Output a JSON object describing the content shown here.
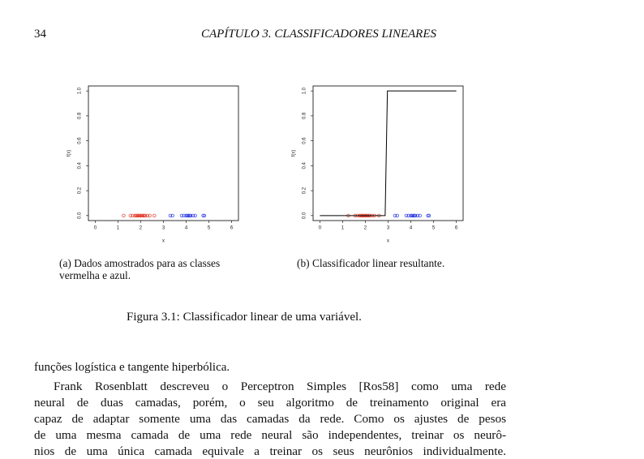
{
  "header": {
    "page_number": "34",
    "chapter": "CAPÍTULO 3.  CLASSIFICADORES LINEARES"
  },
  "chart_data": [
    {
      "type": "scatter",
      "x_label": "x",
      "y_label": "f(x)",
      "xlim": [
        -0.3,
        6.3
      ],
      "ylim": [
        -0.04,
        1.04
      ],
      "xticks": [
        0,
        1,
        2,
        3,
        4,
        5,
        6
      ],
      "yticks": [
        {
          "value": 0,
          "label": "0.0"
        },
        {
          "value": 0.2,
          "label": "0.2"
        },
        {
          "value": 0.4,
          "label": "0.4"
        },
        {
          "value": 0.6,
          "label": "0.6"
        },
        {
          "value": 0.8,
          "label": "0.8"
        },
        {
          "value": 1,
          "label": "1.0"
        }
      ],
      "series": [
        {
          "type": "scatter",
          "color": "#e0301e",
          "x": [
            1.25,
            1.55,
            1.65,
            1.75,
            1.8,
            1.85,
            1.9,
            1.95,
            2.0,
            2.05,
            2.1,
            2.15,
            2.2,
            2.3,
            2.4,
            2.6
          ],
          "values": [
            0,
            0,
            0,
            0,
            0,
            0,
            0,
            0,
            0,
            0,
            0,
            0,
            0,
            0,
            0,
            0
          ]
        },
        {
          "type": "scatter",
          "color": "#2030e0",
          "x": [
            3.3,
            3.4,
            3.8,
            3.9,
            4.0,
            4.05,
            4.1,
            4.15,
            4.2,
            4.3,
            4.4,
            4.75,
            4.8
          ],
          "values": [
            0,
            0,
            0,
            0,
            0,
            0,
            0,
            0,
            0,
            0,
            0,
            0,
            0
          ]
        }
      ],
      "caption": [
        "(a) Dados amostrados para as classes",
        "vermelha e azul."
      ]
    },
    {
      "type": "scatter",
      "x_label": "x",
      "y_label": "f(x)",
      "xlim": [
        -0.3,
        6.3
      ],
      "ylim": [
        -0.04,
        1.04
      ],
      "xticks": [
        0,
        1,
        2,
        3,
        4,
        5,
        6
      ],
      "yticks": [
        {
          "value": 0,
          "label": "0.0"
        },
        {
          "value": 0.2,
          "label": "0.2"
        },
        {
          "value": 0.4,
          "label": "0.4"
        },
        {
          "value": 0.6,
          "label": "0.6"
        },
        {
          "value": 0.8,
          "label": "0.8"
        },
        {
          "value": 1,
          "label": "1.0"
        }
      ],
      "series": [
        {
          "type": "scatter",
          "color": "#e0301e",
          "x": [
            1.25,
            1.55,
            1.65,
            1.75,
            1.8,
            1.85,
            1.9,
            1.95,
            2.0,
            2.05,
            2.1,
            2.15,
            2.2,
            2.3,
            2.4,
            2.6
          ],
          "values": [
            0,
            0,
            0,
            0,
            0,
            0,
            0,
            0,
            0,
            0,
            0,
            0,
            0,
            0,
            0,
            0
          ]
        },
        {
          "type": "scatter",
          "color": "#2030e0",
          "x": [
            3.3,
            3.4,
            3.8,
            3.9,
            4.0,
            4.05,
            4.1,
            4.15,
            4.2,
            4.3,
            4.4,
            4.75,
            4.8
          ],
          "values": [
            0,
            0,
            0,
            0,
            0,
            0,
            0,
            0,
            0,
            0,
            0,
            0,
            0
          ]
        },
        {
          "type": "line",
          "color": "#000000",
          "x": [
            0,
            2.87,
            2.97,
            6
          ],
          "values": [
            0,
            0,
            1,
            1
          ]
        }
      ],
      "caption": [
        "(b) Classificador linear resultante."
      ]
    }
  ],
  "figure_caption": "Figura 3.1: Classificador linear de uma variável.",
  "body": {
    "first_line": "funções logística e tangente hiperbólica.",
    "paragraph": [
      "Frank Rosenblatt descreveu o Perceptron Simples [Ros58] como uma rede",
      "neural de duas camadas, porém, o seu algoritmo de treinamento original era",
      "capaz de adaptar somente uma das camadas da rede. Como os ajustes de pesos",
      "de uma mesma camada de uma rede neural são independentes, treinar os neurô-",
      "nios de uma única camada equivale a treinar os seus neurônios individualmente."
    ]
  }
}
